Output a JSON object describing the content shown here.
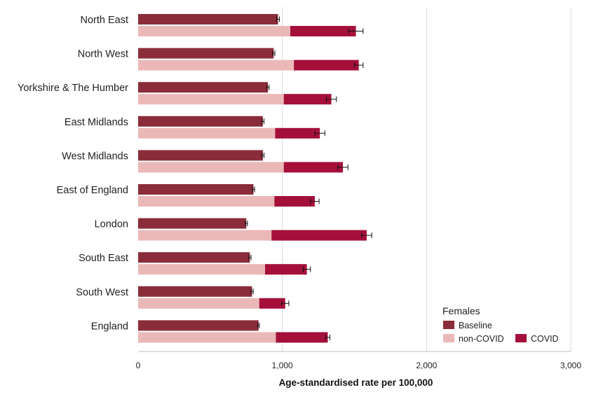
{
  "chart_data": {
    "type": "bar",
    "orientation": "horizontal",
    "stacked_second_bar": true,
    "categories": [
      "North East",
      "North West",
      "Yorkshire & The Humber",
      "East Midlands",
      "West Midlands",
      "East of England",
      "London",
      "South East",
      "South West",
      "England"
    ],
    "series": [
      {
        "name": "Baseline",
        "color": "#8b2c3a",
        "values": [
          970,
          940,
          900,
          865,
          865,
          800,
          750,
          775,
          790,
          835
        ],
        "error": [
          10,
          8,
          8,
          8,
          8,
          8,
          8,
          8,
          8,
          6
        ]
      },
      {
        "name": "non-COVID",
        "color": "#ebb8b8",
        "values": [
          1055,
          1080,
          1010,
          950,
          1010,
          945,
          925,
          880,
          840,
          955
        ]
      },
      {
        "name": "COVID",
        "color": "#a5103a",
        "values": [
          455,
          450,
          330,
          310,
          410,
          280,
          660,
          290,
          180,
          360
        ],
        "error": [
          50,
          30,
          35,
          35,
          35,
          30,
          35,
          25,
          25,
          15
        ]
      }
    ],
    "xlabel": "Age-standardised rate per 100,000",
    "xlim": [
      0,
      3000
    ],
    "xticks": [
      0,
      1000,
      2000,
      3000
    ],
    "xtick_labels": [
      "0",
      "1,000",
      "2,000",
      "3,000"
    ],
    "grid": "vertical",
    "legend": {
      "title": "Females",
      "position": "bottom-right",
      "items": [
        "Baseline",
        "non-COVID",
        "COVID"
      ]
    }
  }
}
